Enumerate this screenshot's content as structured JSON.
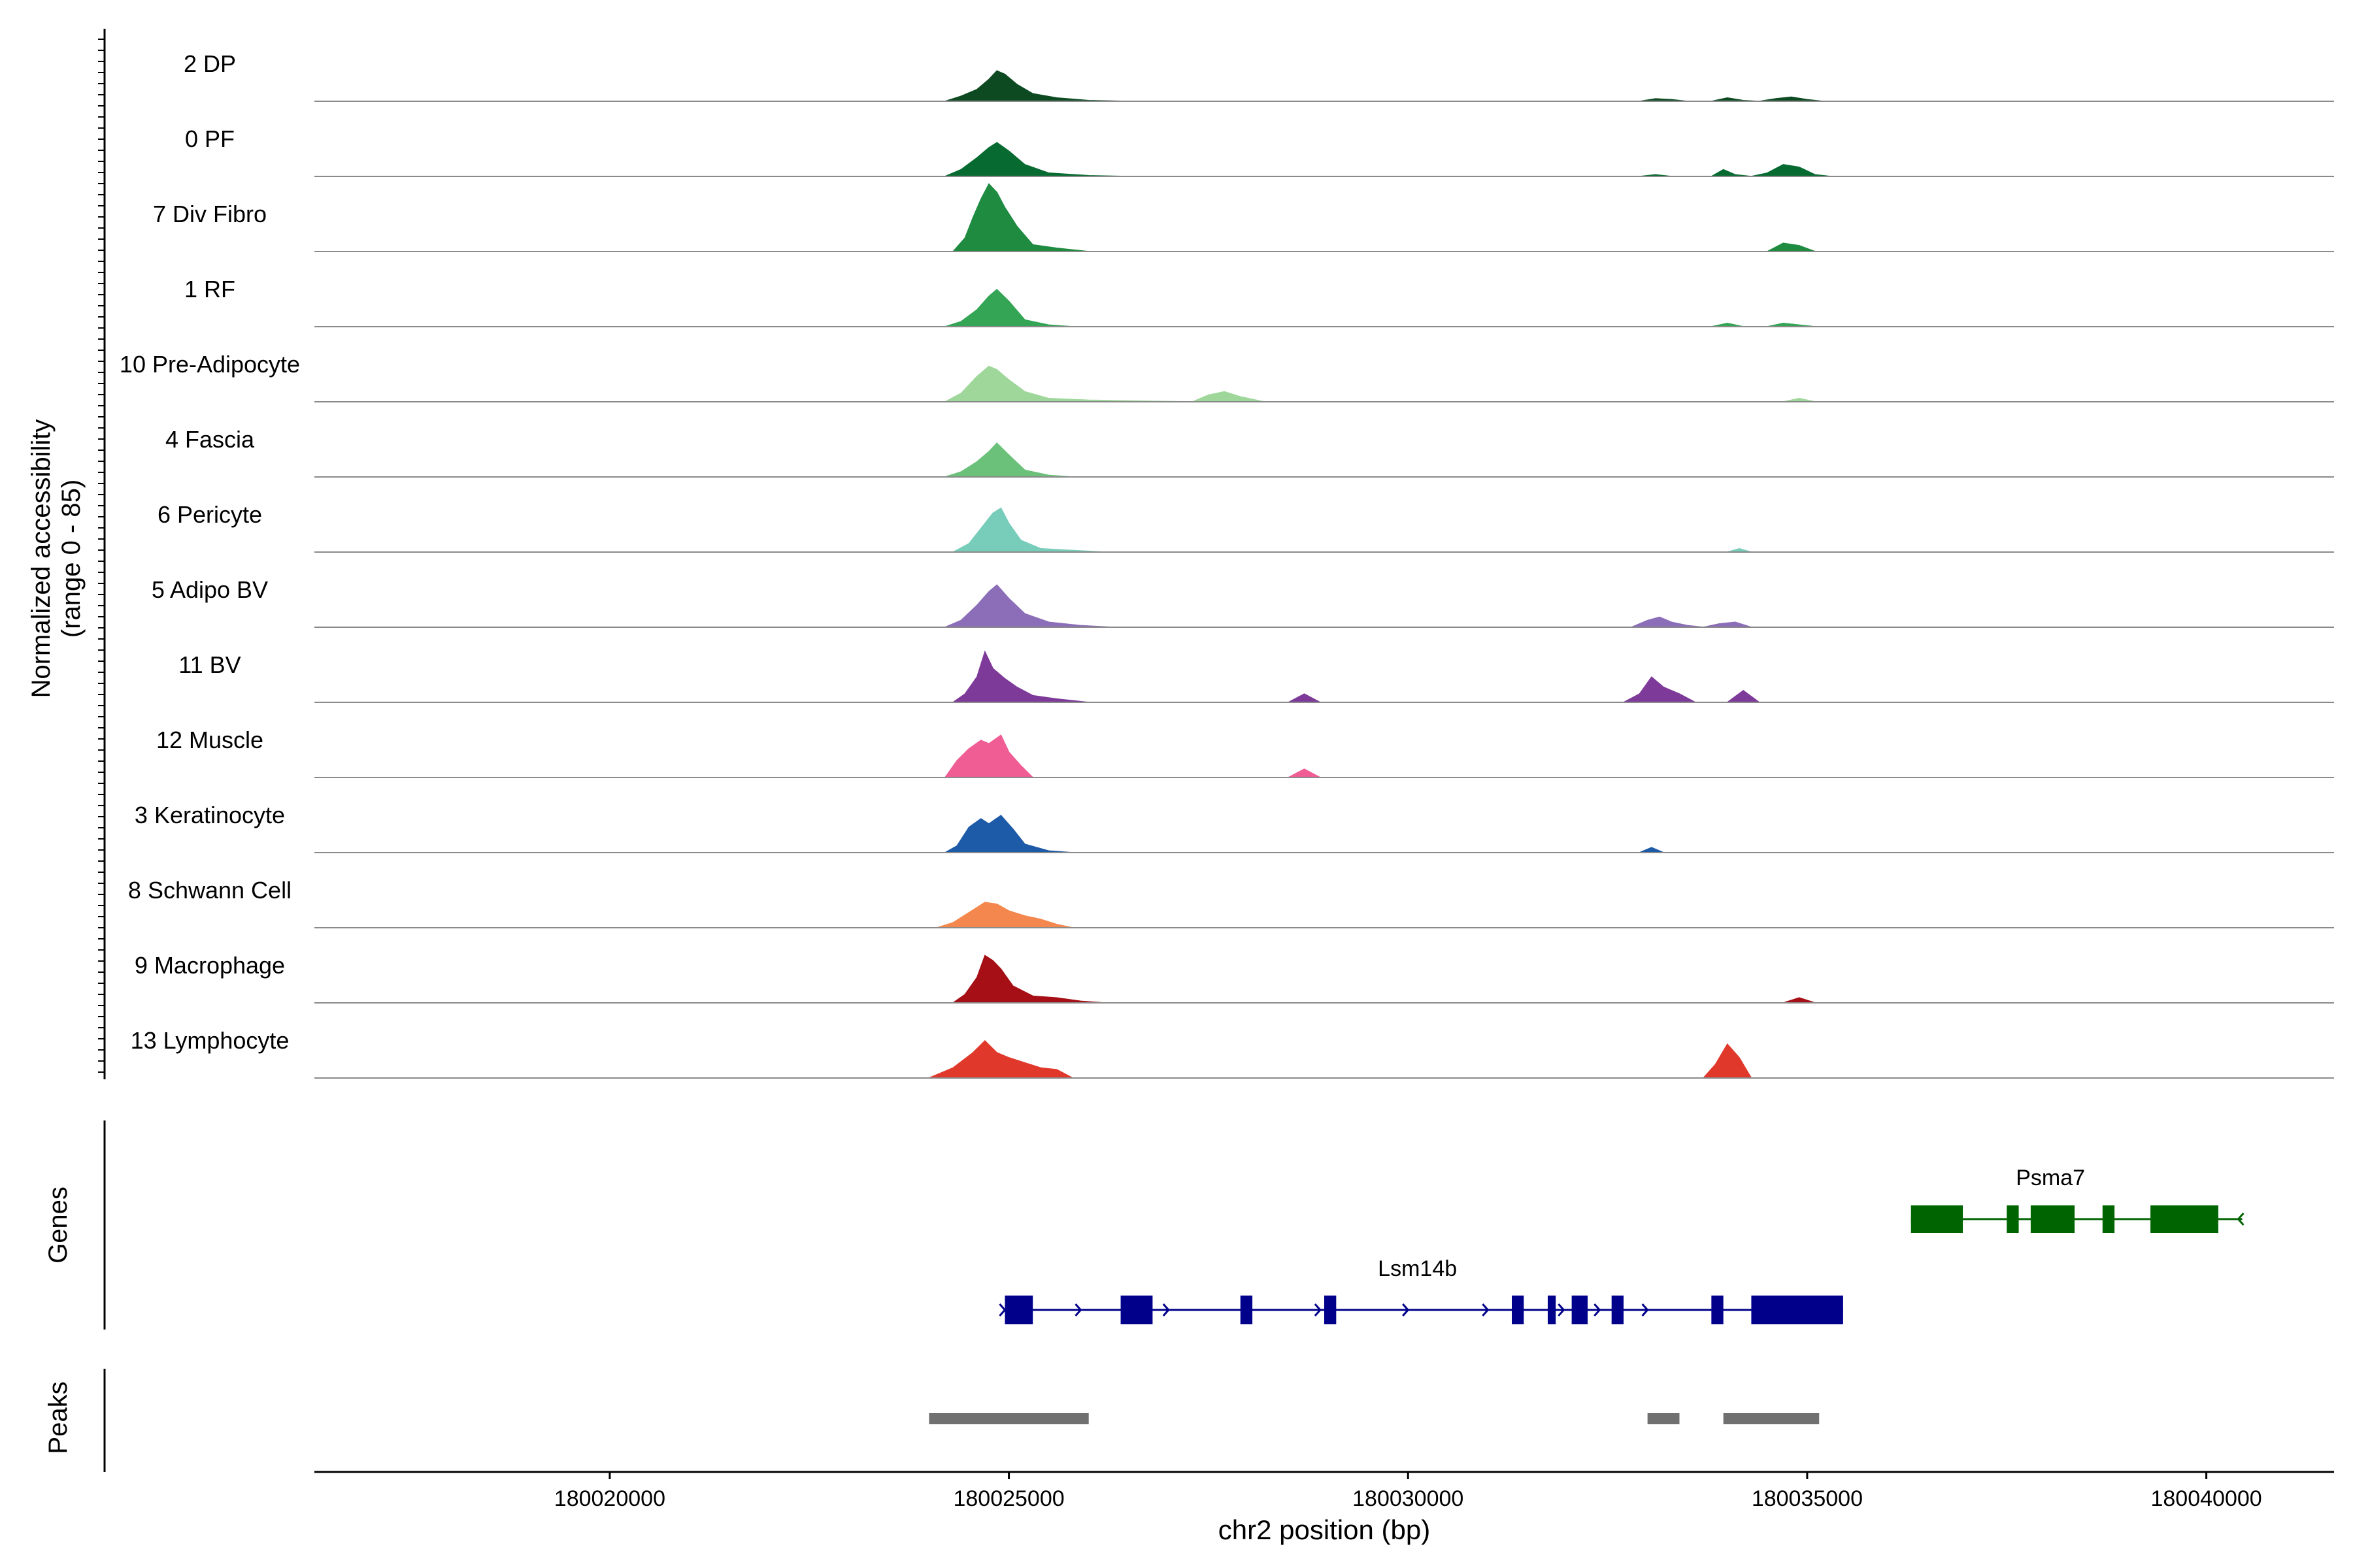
{
  "chart_data": {
    "type": "area",
    "title": "",
    "ylabel": "Normalized accessibility",
    "ylabel_range": "(range 0 - 85)",
    "ylim": [
      0,
      85
    ],
    "xlabel": "chr2 position (bp)",
    "xlim": [
      180016300,
      180041600
    ],
    "x_ticks": [
      180020000,
      180025000,
      180030000,
      180035000,
      180040000
    ],
    "x_tick_labels": [
      "180020000",
      "180025000",
      "180030000",
      "180035000",
      "180040000"
    ],
    "series": [
      {
        "name": "2 DP",
        "color": "#0d4a22",
        "points": [
          [
            180024200,
            0
          ],
          [
            180024400,
            6
          ],
          [
            180024600,
            14
          ],
          [
            180024750,
            26
          ],
          [
            180024850,
            36
          ],
          [
            180024950,
            32
          ],
          [
            180025100,
            20
          ],
          [
            180025300,
            9
          ],
          [
            180025600,
            4
          ],
          [
            180026000,
            1
          ],
          [
            180026500,
            0
          ],
          [
            180032900,
            0
          ],
          [
            180033100,
            3
          ],
          [
            180033300,
            2
          ],
          [
            180033500,
            0
          ],
          [
            180033800,
            0
          ],
          [
            180034000,
            4
          ],
          [
            180034200,
            1
          ],
          [
            180034400,
            0
          ],
          [
            180034600,
            3
          ],
          [
            180034800,
            5
          ],
          [
            180035000,
            2
          ],
          [
            180035200,
            0
          ]
        ]
      },
      {
        "name": "0 PF",
        "color": "#076b31",
        "points": [
          [
            180024200,
            0
          ],
          [
            180024400,
            8
          ],
          [
            180024600,
            22
          ],
          [
            180024750,
            34
          ],
          [
            180024850,
            40
          ],
          [
            180025000,
            30
          ],
          [
            180025200,
            14
          ],
          [
            180025500,
            4
          ],
          [
            180026000,
            1
          ],
          [
            180026500,
            0
          ],
          [
            180032900,
            0
          ],
          [
            180033100,
            2
          ],
          [
            180033300,
            0
          ],
          [
            180033800,
            0
          ],
          [
            180033950,
            8
          ],
          [
            180034100,
            2
          ],
          [
            180034300,
            0
          ],
          [
            180034500,
            4
          ],
          [
            180034700,
            14
          ],
          [
            180034900,
            11
          ],
          [
            180035100,
            2
          ],
          [
            180035300,
            0
          ]
        ]
      },
      {
        "name": "7 Div Fibro",
        "color": "#1e8b41",
        "points": [
          [
            180024300,
            0
          ],
          [
            180024450,
            16
          ],
          [
            180024550,
            40
          ],
          [
            180024650,
            62
          ],
          [
            180024750,
            80
          ],
          [
            180024850,
            70
          ],
          [
            180024950,
            52
          ],
          [
            180025100,
            30
          ],
          [
            180025300,
            8
          ],
          [
            180025600,
            4
          ],
          [
            180026000,
            0
          ],
          [
            180034500,
            0
          ],
          [
            180034700,
            10
          ],
          [
            180034900,
            7
          ],
          [
            180035100,
            0
          ]
        ]
      },
      {
        "name": "1 RF",
        "color": "#34a455",
        "points": [
          [
            180024200,
            0
          ],
          [
            180024400,
            6
          ],
          [
            180024600,
            20
          ],
          [
            180024750,
            36
          ],
          [
            180024850,
            44
          ],
          [
            180025000,
            30
          ],
          [
            180025200,
            8
          ],
          [
            180025500,
            2
          ],
          [
            180025800,
            0
          ],
          [
            180033800,
            0
          ],
          [
            180034000,
            4
          ],
          [
            180034200,
            0
          ],
          [
            180034500,
            0
          ],
          [
            180034700,
            4
          ],
          [
            180034900,
            2
          ],
          [
            180035100,
            0
          ]
        ]
      },
      {
        "name": "10 Pre-Adipocyte",
        "color": "#9fd79a",
        "points": [
          [
            180024200,
            0
          ],
          [
            180024400,
            10
          ],
          [
            180024600,
            30
          ],
          [
            180024750,
            42
          ],
          [
            180024850,
            38
          ],
          [
            180025000,
            26
          ],
          [
            180025200,
            12
          ],
          [
            180025500,
            4
          ],
          [
            180026000,
            2
          ],
          [
            180027300,
            0
          ],
          [
            180027500,
            8
          ],
          [
            180027700,
            12
          ],
          [
            180027900,
            6
          ],
          [
            180028200,
            0
          ],
          [
            180034700,
            0
          ],
          [
            180034900,
            4
          ],
          [
            180035100,
            0
          ]
        ]
      },
      {
        "name": "4 Fascia",
        "color": "#6cc17a",
        "points": [
          [
            180024200,
            0
          ],
          [
            180024400,
            6
          ],
          [
            180024600,
            18
          ],
          [
            180024750,
            30
          ],
          [
            180024850,
            40
          ],
          [
            180025000,
            26
          ],
          [
            180025200,
            8
          ],
          [
            180025500,
            2
          ],
          [
            180025800,
            0
          ]
        ]
      },
      {
        "name": "6 Pericyte",
        "color": "#77cdb9",
        "points": [
          [
            180024300,
            0
          ],
          [
            180024500,
            10
          ],
          [
            180024650,
            28
          ],
          [
            180024800,
            46
          ],
          [
            180024900,
            52
          ],
          [
            180025000,
            34
          ],
          [
            180025150,
            14
          ],
          [
            180025400,
            4
          ],
          [
            180025800,
            2
          ],
          [
            180026200,
            0
          ],
          [
            180034000,
            0
          ],
          [
            180034150,
            4
          ],
          [
            180034300,
            0
          ]
        ]
      },
      {
        "name": "5 Adipo BV",
        "color": "#8b6db8",
        "points": [
          [
            180024200,
            0
          ],
          [
            180024400,
            8
          ],
          [
            180024600,
            26
          ],
          [
            180024750,
            42
          ],
          [
            180024850,
            50
          ],
          [
            180025000,
            34
          ],
          [
            180025200,
            16
          ],
          [
            180025500,
            6
          ],
          [
            180025900,
            2
          ],
          [
            180026300,
            0
          ],
          [
            180032800,
            0
          ],
          [
            180033000,
            8
          ],
          [
            180033150,
            12
          ],
          [
            180033300,
            6
          ],
          [
            180033500,
            2
          ],
          [
            180033700,
            0
          ],
          [
            180033900,
            4
          ],
          [
            180034100,
            6
          ],
          [
            180034300,
            0
          ]
        ]
      },
      {
        "name": "11 BV",
        "color": "#7e3a99",
        "points": [
          [
            180024300,
            0
          ],
          [
            180024450,
            10
          ],
          [
            180024600,
            30
          ],
          [
            180024700,
            60
          ],
          [
            180024800,
            40
          ],
          [
            180024950,
            28
          ],
          [
            180025100,
            18
          ],
          [
            180025300,
            8
          ],
          [
            180025600,
            4
          ],
          [
            180026000,
            0
          ],
          [
            180028500,
            0
          ],
          [
            180028700,
            10
          ],
          [
            180028900,
            0
          ],
          [
            180032700,
            0
          ],
          [
            180032900,
            10
          ],
          [
            180033050,
            30
          ],
          [
            180033200,
            18
          ],
          [
            180033400,
            10
          ],
          [
            180033600,
            0
          ],
          [
            180034000,
            0
          ],
          [
            180034200,
            14
          ],
          [
            180034400,
            0
          ]
        ]
      },
      {
        "name": "12 Muscle",
        "color": "#f05d95",
        "points": [
          [
            180024200,
            0
          ],
          [
            180024350,
            20
          ],
          [
            180024500,
            34
          ],
          [
            180024650,
            44
          ],
          [
            180024750,
            40
          ],
          [
            180024900,
            50
          ],
          [
            180025000,
            30
          ],
          [
            180025150,
            14
          ],
          [
            180025300,
            0
          ],
          [
            180028500,
            0
          ],
          [
            180028700,
            10
          ],
          [
            180028900,
            0
          ]
        ]
      },
      {
        "name": "3 Keratinocyte",
        "color": "#1d5aa8",
        "points": [
          [
            180024200,
            0
          ],
          [
            180024350,
            8
          ],
          [
            180024500,
            30
          ],
          [
            180024650,
            40
          ],
          [
            180024750,
            34
          ],
          [
            180024900,
            44
          ],
          [
            180025050,
            28
          ],
          [
            180025200,
            10
          ],
          [
            180025500,
            2
          ],
          [
            180025800,
            0
          ],
          [
            180032900,
            0
          ],
          [
            180033050,
            6
          ],
          [
            180033200,
            0
          ]
        ]
      },
      {
        "name": "8 Schwann Cell",
        "color": "#f4874d",
        "points": [
          [
            180024100,
            0
          ],
          [
            180024300,
            6
          ],
          [
            180024500,
            18
          ],
          [
            180024700,
            30
          ],
          [
            180024850,
            28
          ],
          [
            180025000,
            20
          ],
          [
            180025200,
            14
          ],
          [
            180025400,
            10
          ],
          [
            180025600,
            4
          ],
          [
            180025800,
            0
          ]
        ]
      },
      {
        "name": "9 Macrophage",
        "color": "#a50f15",
        "points": [
          [
            180024300,
            0
          ],
          [
            180024450,
            10
          ],
          [
            180024600,
            30
          ],
          [
            180024700,
            56
          ],
          [
            180024800,
            50
          ],
          [
            180024900,
            40
          ],
          [
            180025050,
            20
          ],
          [
            180025300,
            8
          ],
          [
            180025600,
            6
          ],
          [
            180025900,
            2
          ],
          [
            180026200,
            0
          ],
          [
            180034700,
            0
          ],
          [
            180034900,
            6
          ],
          [
            180035100,
            0
          ]
        ]
      },
      {
        "name": "13 Lymphocyte",
        "color": "#e0392c",
        "points": [
          [
            180024000,
            0
          ],
          [
            180024300,
            12
          ],
          [
            180024550,
            30
          ],
          [
            180024700,
            44
          ],
          [
            180024850,
            30
          ],
          [
            180025000,
            24
          ],
          [
            180025200,
            18
          ],
          [
            180025400,
            12
          ],
          [
            180025600,
            10
          ],
          [
            180025800,
            0
          ],
          [
            180033700,
            0
          ],
          [
            180033850,
            16
          ],
          [
            180034000,
            40
          ],
          [
            180034150,
            24
          ],
          [
            180034300,
            0
          ]
        ]
      }
    ],
    "genes": [
      {
        "name": "Psma7",
        "color": "#006400",
        "strand": "-",
        "start": 180036300,
        "end": 180040450,
        "exons": [
          [
            180036300,
            180036950
          ],
          [
            180037500,
            180037650
          ],
          [
            180037800,
            180038350
          ],
          [
            180038700,
            180038850
          ],
          [
            180039300,
            180040150
          ]
        ],
        "arrows": [
          180038150,
          180040400
        ]
      },
      {
        "name": "Lsm14b",
        "color": "#00008b",
        "strand": "+",
        "start": 180024950,
        "end": 180035450,
        "exons": [
          [
            180024950,
            180025300
          ],
          [
            180026400,
            180026800
          ],
          [
            180027900,
            180028050
          ],
          [
            180028950,
            180029100
          ],
          [
            180031300,
            180031450
          ],
          [
            180031750,
            180031850
          ],
          [
            180032050,
            180032250
          ],
          [
            180032550,
            180032700
          ],
          [
            180033800,
            180033950
          ],
          [
            180034300,
            180035450
          ]
        ],
        "arrows": [
          180024950,
          180025900,
          180027000,
          180028900,
          180030000,
          180031000,
          180031950,
          180032400,
          180033000
        ]
      }
    ],
    "peaks": [
      [
        180024000,
        180026000
      ],
      [
        180033000,
        180033400
      ],
      [
        180033950,
        180035150
      ]
    ],
    "panel_labels": {
      "genes": "Genes",
      "peaks": "Peaks"
    },
    "peak_color": "#707070"
  }
}
